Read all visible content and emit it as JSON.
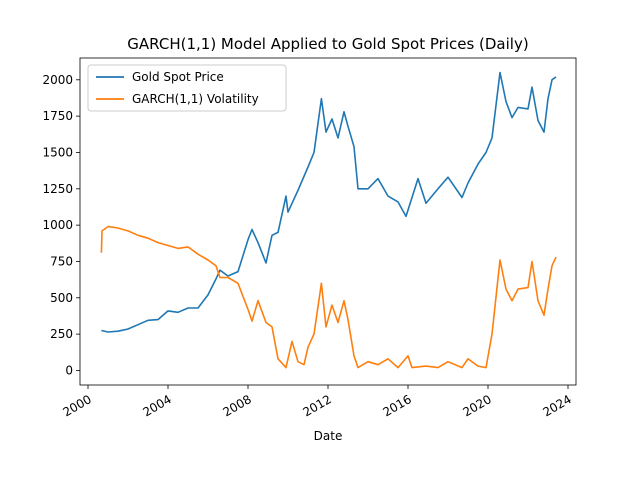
{
  "chart_data": {
    "type": "line",
    "title": "GARCH(1,1) Model Applied to Gold Spot Prices (Daily)",
    "xlabel": "Date",
    "ylabel": "",
    "xlim": [
      1999.6,
      2024.4
    ],
    "ylim": [
      -100,
      2150
    ],
    "x_ticks": [
      "2000",
      "2004",
      "2008",
      "2012",
      "2016",
      "2020",
      "2024"
    ],
    "x_tick_values": [
      2000,
      2004,
      2008,
      2012,
      2016,
      2020,
      2024
    ],
    "y_ticks": [
      0,
      250,
      500,
      750,
      1000,
      1250,
      1500,
      1750,
      2000
    ],
    "legend_position": "top-left",
    "grid": false,
    "series": [
      {
        "name": "Gold Spot Price",
        "color": "#1f77b4",
        "x": [
          2000.67,
          2001.0,
          2001.5,
          2002.0,
          2002.5,
          2003.0,
          2003.5,
          2004.0,
          2004.5,
          2005.0,
          2005.5,
          2006.0,
          2006.4,
          2006.6,
          2007.0,
          2007.5,
          2008.0,
          2008.2,
          2008.5,
          2008.9,
          2009.2,
          2009.5,
          2009.9,
          2010.0,
          2010.5,
          2011.0,
          2011.3,
          2011.67,
          2011.9,
          2012.2,
          2012.5,
          2012.8,
          2013.0,
          2013.3,
          2013.5,
          2014.0,
          2014.5,
          2015.0,
          2015.5,
          2015.9,
          2016.5,
          2016.9,
          2017.5,
          2018.0,
          2018.7,
          2019.0,
          2019.5,
          2019.9,
          2020.2,
          2020.6,
          2020.9,
          2021.2,
          2021.5,
          2022.0,
          2022.2,
          2022.5,
          2022.8,
          2023.0,
          2023.2,
          2023.4
        ],
        "y": [
          275,
          265,
          270,
          285,
          315,
          345,
          350,
          410,
          400,
          430,
          430,
          520,
          630,
          690,
          650,
          680,
          900,
          970,
          880,
          740,
          930,
          950,
          1200,
          1090,
          1240,
          1400,
          1500,
          1870,
          1640,
          1730,
          1600,
          1780,
          1680,
          1540,
          1250,
          1250,
          1320,
          1200,
          1160,
          1060,
          1320,
          1150,
          1250,
          1330,
          1190,
          1290,
          1420,
          1500,
          1600,
          2050,
          1850,
          1740,
          1810,
          1800,
          1950,
          1720,
          1640,
          1870,
          2000,
          2020
        ]
      },
      {
        "name": "GARCH(1,1) Volatility",
        "color": "#ff7f0e",
        "x": [
          2000.67,
          2000.7,
          2001.0,
          2001.5,
          2002.0,
          2002.5,
          2003.0,
          2003.5,
          2004.0,
          2004.5,
          2005.0,
          2005.5,
          2006.0,
          2006.4,
          2006.6,
          2007.0,
          2007.5,
          2008.0,
          2008.2,
          2008.5,
          2008.9,
          2009.2,
          2009.5,
          2009.9,
          2010.2,
          2010.5,
          2010.8,
          2011.0,
          2011.3,
          2011.67,
          2011.9,
          2012.2,
          2012.5,
          2012.8,
          2013.0,
          2013.3,
          2013.5,
          2014.0,
          2014.5,
          2015.0,
          2015.5,
          2016.0,
          2016.2,
          2016.9,
          2017.5,
          2018.0,
          2018.7,
          2019.0,
          2019.5,
          2019.9,
          2020.2,
          2020.6,
          2020.9,
          2021.2,
          2021.5,
          2022.0,
          2022.2,
          2022.5,
          2022.8,
          2023.0,
          2023.2,
          2023.4
        ],
        "y": [
          810,
          960,
          990,
          980,
          960,
          930,
          910,
          880,
          860,
          840,
          850,
          800,
          760,
          720,
          640,
          640,
          600,
          420,
          340,
          480,
          330,
          300,
          80,
          20,
          200,
          60,
          40,
          160,
          250,
          600,
          300,
          450,
          330,
          480,
          350,
          100,
          20,
          60,
          40,
          80,
          20,
          100,
          20,
          30,
          20,
          60,
          20,
          80,
          30,
          20,
          250,
          760,
          560,
          480,
          560,
          570,
          750,
          480,
          380,
          560,
          720,
          780
        ]
      }
    ]
  }
}
